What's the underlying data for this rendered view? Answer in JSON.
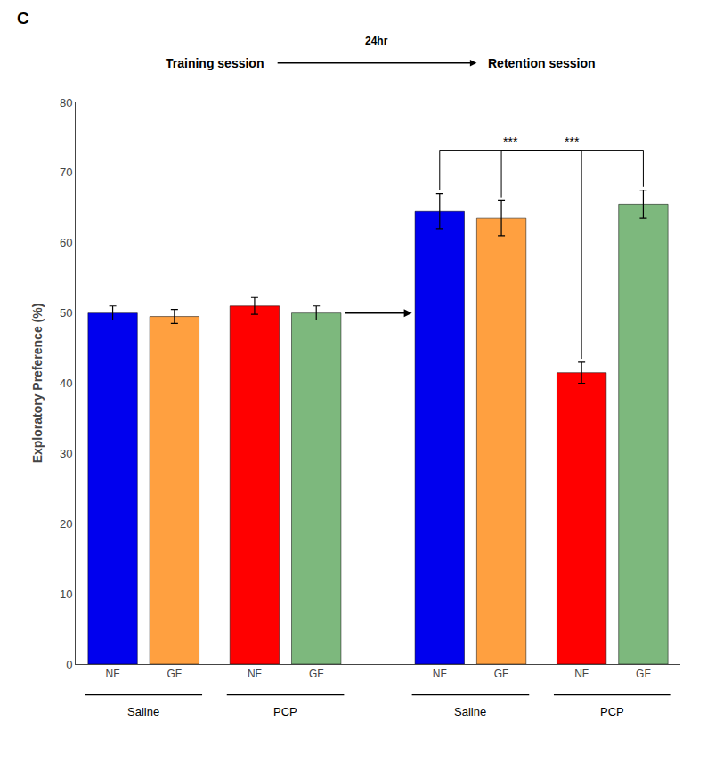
{
  "chart_data": {
    "type": "bar",
    "categories": [
      "NF",
      "GF",
      "NF",
      "GF",
      "NF",
      "GF",
      "NF",
      "GF"
    ],
    "values": [
      50.0,
      49.5,
      51.0,
      50.0,
      64.5,
      63.5,
      41.5,
      65.5
    ],
    "errors": [
      1.0,
      1.0,
      1.2,
      1.0,
      2.5,
      2.5,
      1.5,
      2.0
    ],
    "colors": [
      "#0000EE",
      "#FFA040",
      "#FF0000",
      "#7DB87D",
      "#0000EE",
      "#FFA040",
      "#FF0000",
      "#7DB87D"
    ],
    "ylabel": "Exploratory Preference (%)",
    "ylim": [
      0,
      80
    ],
    "yticks": [
      0,
      10,
      20,
      30,
      40,
      50,
      60,
      70,
      80
    ],
    "grid": false,
    "groups": [
      "Saline",
      "PCP",
      "Saline",
      "PCP"
    ],
    "panel_label": "C",
    "header_training": "Training session",
    "header_retention": "Retention session",
    "arrow_label": "24hr",
    "significance": [
      {
        "from": 4,
        "to": 6,
        "label": "***"
      },
      {
        "from": 5,
        "to": 7,
        "label": "***"
      }
    ]
  }
}
